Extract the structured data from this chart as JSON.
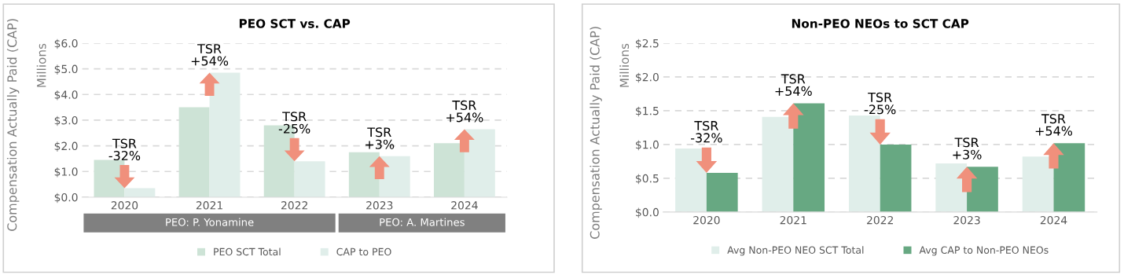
{
  "chart_data": [
    {
      "type": "bar",
      "title": "PEO SCT vs. CAP",
      "ylabel": "Compensation Actually Paid (CAP)",
      "categories": [
        "2020",
        "2021",
        "2022",
        "2023",
        "2024"
      ],
      "series": [
        {
          "name": "PEO SCT Total",
          "color": "#cde3d6",
          "values": [
            1.45,
            3.5,
            2.8,
            1.75,
            2.1
          ]
        },
        {
          "name": "CAP to PEO",
          "color": "#e0eeea",
          "values": [
            0.35,
            4.85,
            1.4,
            1.6,
            2.65
          ]
        }
      ],
      "ylim": [
        0,
        6.0
      ],
      "yticks": [
        {
          "value": 0,
          "label": "$0.0"
        },
        {
          "value": 1,
          "label": "$1.0"
        },
        {
          "value": 2,
          "label": "$2.0"
        },
        {
          "value": 3,
          "label": "$3.0"
        },
        {
          "value": 4,
          "label": "$4.0"
        },
        {
          "value": 5,
          "label": "$5.0"
        },
        {
          "value": 6,
          "label": "$6.0"
        }
      ],
      "grid": "y",
      "legend": "bottom",
      "annotations": [
        {
          "text": "TSR\n-32%",
          "x": "2020",
          "y": 0.35
        },
        {
          "text": "TSR\n+54%",
          "x": "2021",
          "y": 4.85
        },
        {
          "text": "TSR\n-25%",
          "x": "2022",
          "y": 1.4
        },
        {
          "text": "TSR\n+3%",
          "x": "2023",
          "y": 1.6
        },
        {
          "text": "TSR\n+54%",
          "x": "2024",
          "y": 2.65
        },
        "Millions",
        "PEO: P. Yonamine",
        "PEO: A. Martines"
      ]
    },
    {
      "type": "bar",
      "title": "Non-PEO NEOs to SCT CAP",
      "ylabel": "Compensation Actually Paid (CAP)",
      "categories": [
        "2020",
        "2021",
        "2022",
        "2023",
        "2024"
      ],
      "series": [
        {
          "name": "Avg Non-PEO NEO SCT Total",
          "color": "#e0eeea",
          "values": [
            0.94,
            1.41,
            1.43,
            0.72,
            0.82
          ]
        },
        {
          "name": "Avg CAP to Non-PEO NEOs",
          "color": "#67a882",
          "values": [
            0.58,
            1.61,
            1.0,
            0.67,
            1.02
          ]
        }
      ],
      "ylim": [
        0,
        2.5
      ],
      "yticks": [
        {
          "value": 0,
          "label": "$0.0"
        },
        {
          "value": 0.5,
          "label": "$0.5"
        },
        {
          "value": 1,
          "label": "$1.0"
        },
        {
          "value": 1.5,
          "label": "$1.5"
        },
        {
          "value": 2,
          "label": "$2.0"
        },
        {
          "value": 2.5,
          "label": "$2.5"
        }
      ],
      "grid": "y",
      "legend": "bottom",
      "annotations": [
        {
          "text": "TSR\n-32%",
          "x": "2020",
          "y": 0.58
        },
        {
          "text": "TSR\n+54%",
          "x": "2021",
          "y": 1.61
        },
        {
          "text": "TSR\n-25%",
          "x": "2022",
          "y": 1.0
        },
        {
          "text": "TSR\n+3%",
          "x": "2023",
          "y": 0.67
        },
        {
          "text": "TSR\n+54%",
          "x": "2024",
          "y": 1.02
        },
        "Millions"
      ]
    }
  ]
}
